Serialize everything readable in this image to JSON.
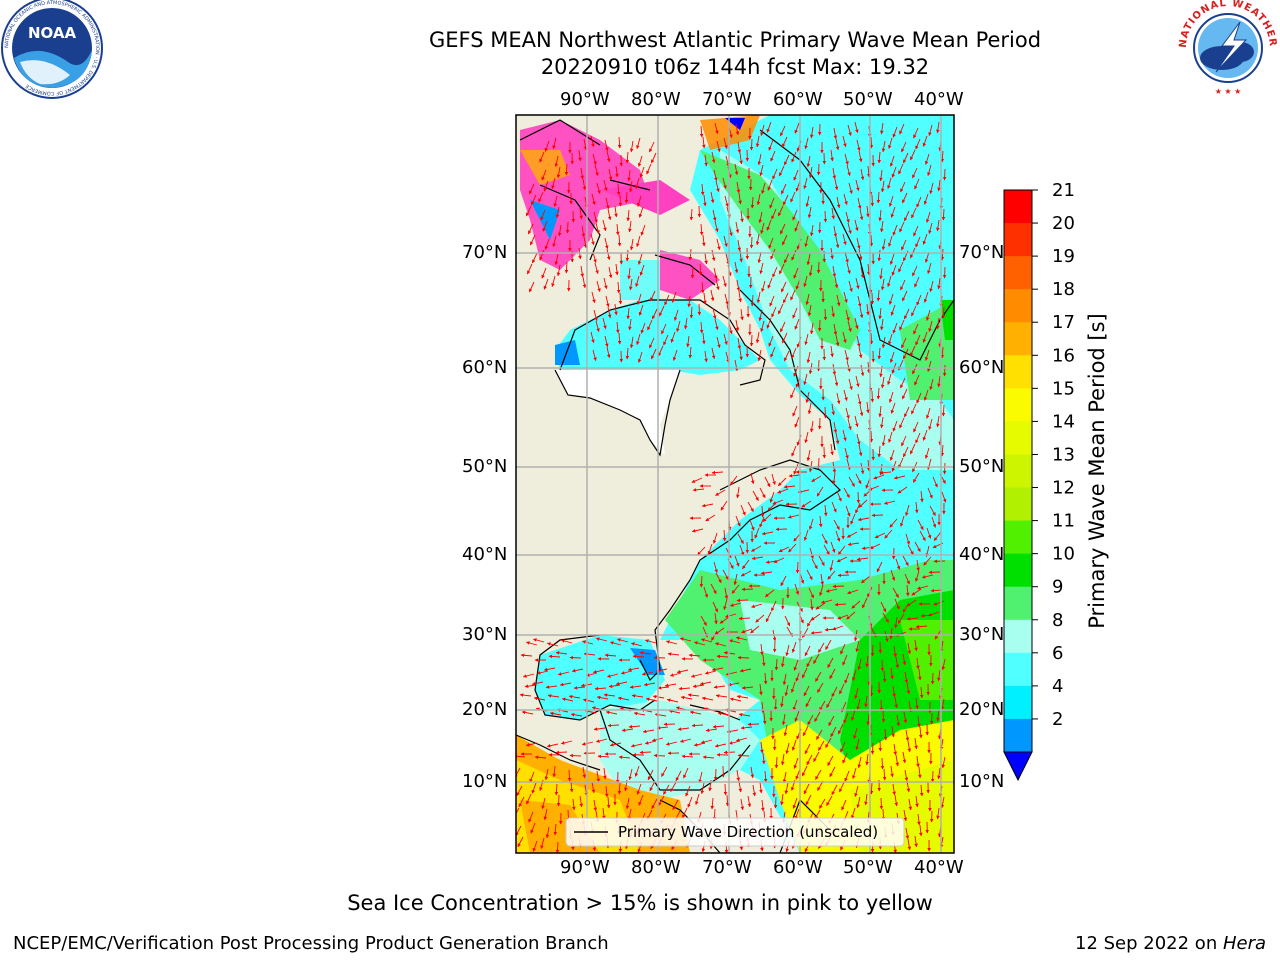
{
  "header": {
    "title": "GEFS MEAN Northwest Atlantic Primary Wave Mean Period",
    "subtitle": "20220910 t06z 144h fcst   Max: 19.32"
  },
  "logos": {
    "left": {
      "name": "noaa-logo",
      "text": "NOAA",
      "ring_text": "NATIONAL OCEANIC AND ATMOSPHERIC ADMINISTRATION · U.S. DEPARTMENT OF COMMERCE"
    },
    "right": {
      "name": "nws-logo",
      "ring_text": "NATIONAL WEATHER SERVICE"
    }
  },
  "map": {
    "lon_ticks": [
      "90°W",
      "80°W",
      "70°W",
      "60°W",
      "50°W",
      "40°W"
    ],
    "lat_ticks": [
      "70°N",
      "60°N",
      "50°N",
      "40°N",
      "30°N",
      "20°N",
      "10°N"
    ],
    "legend_label": "Primary Wave Direction (unscaled)",
    "arrow_color": "#ff0000",
    "land_color": "#efeedc"
  },
  "colorbar": {
    "label": "Primary Wave Mean Period [s]",
    "ticks": [
      "21",
      "20",
      "19",
      "18",
      "17",
      "16",
      "15",
      "14",
      "13",
      "12",
      "11",
      "10",
      "9",
      "8",
      "6",
      "4",
      "2"
    ],
    "colors": [
      "#ff0000",
      "#ff3000",
      "#ff6000",
      "#ff8c00",
      "#ffb000",
      "#ffe000",
      "#fafa00",
      "#e6fa00",
      "#cdf500",
      "#b0f000",
      "#50f000",
      "#00e000",
      "#50f070",
      "#a8fff0",
      "#50ffff",
      "#00f0ff",
      "#0098ff",
      "#0000ff"
    ]
  },
  "notes": {
    "sea_ice": "Sea Ice Concentration > 15% is shown in pink to yellow"
  },
  "footer": {
    "left": "NCEP/EMC/Verification Post Processing Product Generation Branch",
    "date": "12 Sep 2022 on ",
    "host": "Hera"
  }
}
